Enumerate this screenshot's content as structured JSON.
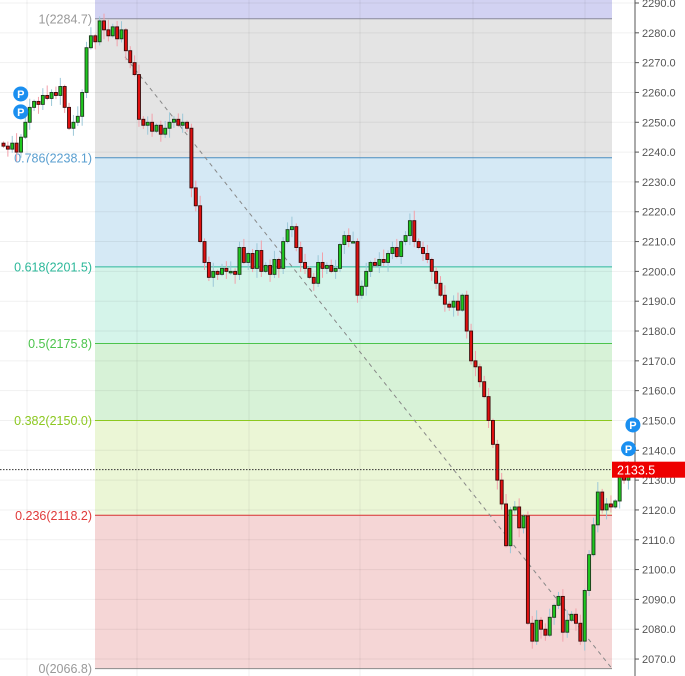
{
  "chart_data": {
    "type": "candlestick",
    "title": "",
    "ylim": [
      2066,
      2292
    ],
    "y_ticks": [
      2290,
      2280,
      2270,
      2260,
      2250,
      2240,
      2230,
      2220,
      2210,
      2200,
      2190,
      2180,
      2170,
      2160,
      2150,
      2140,
      2130,
      2120,
      2110,
      2100,
      2090,
      2080,
      2070
    ],
    "y_tick_labels": [
      "2290.0",
      "2280.0",
      "2270.0",
      "2260.0",
      "2250.0",
      "2240.0",
      "2230.0",
      "2220.0",
      "2210.0",
      "2200.0",
      "2190.0",
      "2180.0",
      "2170.0",
      "2160.0",
      "2150.0",
      "2140.0",
      "2130.0",
      "2120.0",
      "2110.0",
      "2100.0",
      "2090.0",
      "2080.0",
      "2070.0"
    ],
    "grid": true,
    "first_close": 2243,
    "closes": [
      2242,
      2241,
      2243,
      2240,
      2245,
      2250,
      2255,
      2257,
      2256,
      2259,
      2258,
      2260,
      2259,
      2262,
      2255,
      2248,
      2250,
      2252,
      2260,
      2275,
      2279,
      2277,
      2284,
      2281,
      2279,
      2282,
      2278,
      2281,
      2274,
      2270,
      2266,
      2251,
      2249,
      2250,
      2247,
      2249,
      2246,
      2248,
      2250,
      2251,
      2249,
      2250,
      2248,
      2228,
      2222,
      2210,
      2203,
      2198,
      2200,
      2199,
      2201,
      2200,
      2200,
      2199,
      2208,
      2203,
      2206,
      2201,
      2207,
      2200,
      2202,
      2199,
      2204,
      2201,
      2210,
      2214,
      2215,
      2208,
      2203,
      2201,
      2198,
      2196,
      2203,
      2201,
      2202,
      2200,
      2201,
      2209,
      2212,
      2210,
      2210,
      2192,
      2195,
      2200,
      2203,
      2202,
      2204,
      2203,
      2206,
      2208,
      2205,
      2210,
      2212,
      2217,
      2210,
      2208,
      2206,
      2204,
      2200,
      2196,
      2192,
      2189,
      2188,
      2190,
      2187,
      2192,
      2180,
      2170,
      2168,
      2163,
      2158,
      2150,
      2142,
      2130,
      2122,
      2108,
      2120,
      2121,
      2114,
      2118,
      2082,
      2076,
      2083,
      2080,
      2078,
      2084,
      2088,
      2091,
      2079,
      2083,
      2085,
      2082,
      2076,
      2093,
      2105,
      2115,
      2126,
      2120,
      2122,
      2121,
      2123,
      2134,
      2130,
      2133,
      2135,
      2133.5
    ],
    "colors": {
      "up": "#1ec81e",
      "down": "#e01010",
      "up_wick": "#9cc8d8",
      "down_wick": "#f2a0aa"
    },
    "fib_retracement": {
      "from": 2284.7,
      "to": 2066.8,
      "levels": [
        {
          "ratio": 1,
          "price": 2284.7,
          "label": "1(2284.7)",
          "line_color": "#8a8a9a",
          "text_color": "#999999",
          "zone_color": "#e4e4e4"
        },
        {
          "ratio": 0.786,
          "price": 2238.1,
          "label": "0.786(2238.1)",
          "line_color": "#4a8ec2",
          "text_color": "#5a9fd0",
          "zone_color": "#d5e9f5"
        },
        {
          "ratio": 0.618,
          "price": 2201.5,
          "label": "0.618(2201.5)",
          "line_color": "#2cb89a",
          "text_color": "#2cb89a",
          "zone_color": "#d5f4ea"
        },
        {
          "ratio": 0.5,
          "price": 2175.8,
          "label": "0.5(2175.8)",
          "line_color": "#4cc44c",
          "text_color": "#4cc44c",
          "zone_color": "#d7f2d7"
        },
        {
          "ratio": 0.382,
          "price": 2150.0,
          "label": "0.382(2150.0)",
          "line_color": "#8cc820",
          "text_color": "#8cc820",
          "zone_color": "#ebf6d6"
        },
        {
          "ratio": 0.236,
          "price": 2118.2,
          "label": "0.236(2118.2)",
          "line_color": "#d83030",
          "text_color": "#e03a3a",
          "zone_color": "#f5d6d6"
        },
        {
          "ratio": 0,
          "price": 2066.8,
          "label": "0(2066.8)",
          "line_color": "#8a8a8a",
          "text_color": "#999999",
          "zone_color": null
        }
      ],
      "above_zone_color": "#d2d2f2"
    },
    "current_price": {
      "value": 2133.5,
      "label": "2133.5",
      "color": "#ee0000"
    },
    "markers": [
      {
        "label": "P",
        "candle": 2,
        "price": 2259.5
      },
      {
        "label": "P",
        "candle": 2,
        "price": 2253.5
      },
      {
        "label": "P",
        "candle": 142,
        "price": 2140.5
      },
      {
        "label": "P",
        "candle": 143,
        "price": 2148.5
      }
    ],
    "marker_color": "#1a8ff0"
  }
}
